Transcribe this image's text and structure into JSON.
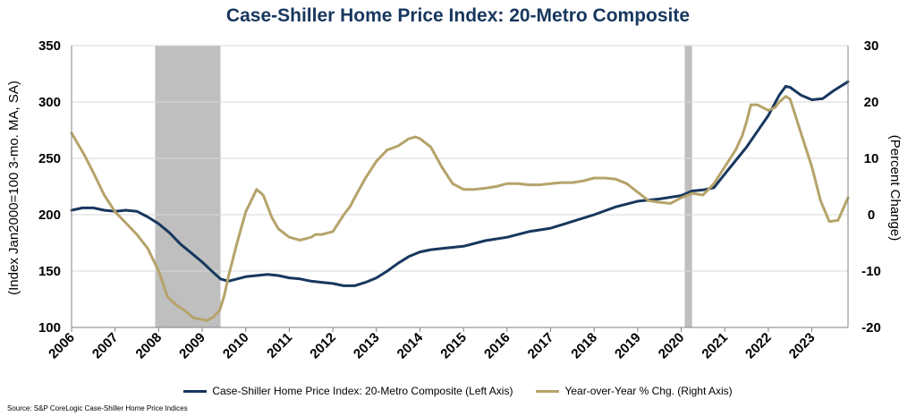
{
  "chart_data": {
    "type": "line",
    "title": "Case-Shiller Home Price Index: 20-Metro Composite",
    "ylabel": "(Index Jan2000=100 3-mo. MA, SA)",
    "y2label": "(Percent Change)",
    "ylim": [
      100,
      350
    ],
    "y2lim": [
      -20,
      30
    ],
    "xlim": [
      2006.0,
      2023.83
    ],
    "yticks": [
      "100",
      "150",
      "200",
      "250",
      "300",
      "350"
    ],
    "y2ticks": [
      "-20",
      "-10",
      "0",
      "10",
      "20",
      "30"
    ],
    "xticks": [
      "2006",
      "2007",
      "2008",
      "2009",
      "2010",
      "2011",
      "2012",
      "2013",
      "2014",
      "2015",
      "2016",
      "2017",
      "2018",
      "2019",
      "2020",
      "2021",
      "2022",
      "2023"
    ],
    "grid": "horizontal",
    "legend": "bottom",
    "recessions": [
      [
        2007.92,
        2009.42
      ],
      [
        2020.08,
        2020.25
      ]
    ],
    "series": [
      {
        "name": "Case-Shiller Home Price Index: 20-Metro Composite (Left Axis)",
        "axis": "left",
        "color": "#17375e",
        "x": [
          2006.0,
          2006.25,
          2006.5,
          2006.75,
          2007.0,
          2007.25,
          2007.5,
          2007.75,
          2008.0,
          2008.25,
          2008.5,
          2008.75,
          2009.0,
          2009.25,
          2009.42,
          2009.6,
          2009.8,
          2010.0,
          2010.25,
          2010.5,
          2010.75,
          2011.0,
          2011.25,
          2011.5,
          2011.75,
          2012.0,
          2012.25,
          2012.5,
          2012.75,
          2013.0,
          2013.25,
          2013.5,
          2013.75,
          2014.0,
          2014.25,
          2014.5,
          2014.75,
          2015.0,
          2015.5,
          2016.0,
          2016.5,
          2017.0,
          2017.5,
          2018.0,
          2018.5,
          2019.0,
          2019.5,
          2020.0,
          2020.25,
          2020.5,
          2020.75,
          2021.0,
          2021.25,
          2021.5,
          2021.75,
          2022.0,
          2022.25,
          2022.4,
          2022.5,
          2022.75,
          2023.0,
          2023.25,
          2023.5,
          2023.83
        ],
        "values": [
          204,
          206,
          206,
          204,
          203,
          204,
          203,
          198,
          192,
          184,
          174,
          166,
          158,
          149,
          143,
          141,
          143,
          145,
          146,
          147,
          146,
          144,
          143,
          141,
          140,
          139,
          137,
          137,
          140,
          144,
          150,
          157,
          163,
          167,
          169,
          170,
          171,
          172,
          177,
          180,
          185,
          188,
          194,
          200,
          207,
          212,
          214,
          217,
          221,
          222,
          224,
          236,
          248,
          260,
          274,
          288,
          306,
          314,
          313,
          306,
          302,
          303,
          310,
          318
        ]
      },
      {
        "name": "Year-over-Year % Chg. (Right Axis)",
        "axis": "right",
        "color": "#b5a36a",
        "x": [
          2006.0,
          2006.15,
          2006.3,
          2006.5,
          2006.75,
          2007.0,
          2007.25,
          2007.5,
          2007.75,
          2008.0,
          2008.2,
          2008.4,
          2008.6,
          2008.8,
          2009.0,
          2009.1,
          2009.25,
          2009.4,
          2009.5,
          2009.6,
          2009.8,
          2010.0,
          2010.25,
          2010.4,
          2010.5,
          2010.6,
          2010.75,
          2011.0,
          2011.25,
          2011.5,
          2011.6,
          2011.75,
          2012.0,
          2012.25,
          2012.4,
          2012.5,
          2012.75,
          2013.0,
          2013.25,
          2013.5,
          2013.75,
          2013.9,
          2014.0,
          2014.25,
          2014.5,
          2014.75,
          2015.0,
          2015.25,
          2015.5,
          2015.75,
          2016.0,
          2016.25,
          2016.5,
          2016.75,
          2017.0,
          2017.25,
          2017.5,
          2017.75,
          2018.0,
          2018.25,
          2018.5,
          2018.75,
          2019.0,
          2019.25,
          2019.5,
          2019.75,
          2020.0,
          2020.25,
          2020.5,
          2020.75,
          2021.0,
          2021.25,
          2021.4,
          2021.5,
          2021.6,
          2021.75,
          2022.0,
          2022.15,
          2022.25,
          2022.4,
          2022.5,
          2022.75,
          2023.0,
          2023.2,
          2023.4,
          2023.6,
          2023.83
        ],
        "values": [
          14.5,
          12.5,
          10.5,
          7.5,
          3.5,
          0.5,
          -1.5,
          -3.5,
          -6.0,
          -10.0,
          -14.5,
          -16.0,
          -17.0,
          -18.3,
          -18.6,
          -18.8,
          -18.2,
          -17.0,
          -14.5,
          -11.0,
          -5.0,
          0.5,
          4.5,
          3.5,
          1.5,
          -0.5,
          -2.5,
          -4.0,
          -4.5,
          -4.0,
          -3.5,
          -3.5,
          -3.0,
          0.0,
          1.5,
          3.0,
          6.5,
          9.5,
          11.5,
          12.2,
          13.5,
          13.8,
          13.5,
          12.0,
          8.5,
          5.5,
          4.5,
          4.5,
          4.7,
          5.0,
          5.5,
          5.5,
          5.3,
          5.3,
          5.5,
          5.7,
          5.7,
          6.0,
          6.5,
          6.5,
          6.3,
          5.5,
          4.0,
          2.5,
          2.2,
          2.0,
          3.0,
          3.8,
          3.5,
          5.5,
          8.5,
          11.5,
          14.0,
          16.5,
          19.5,
          19.5,
          18.5,
          19.0,
          20.0,
          21.0,
          20.5,
          14.5,
          8.5,
          2.5,
          -1.2,
          -1.0,
          3.0
        ]
      }
    ]
  },
  "source_note": "Source: S&P CoreLogic Case-Shiller Home Price Indices",
  "colors": {
    "grid": "#d9d9d9",
    "recession": "#bfbfbf",
    "axis": "#808080"
  }
}
